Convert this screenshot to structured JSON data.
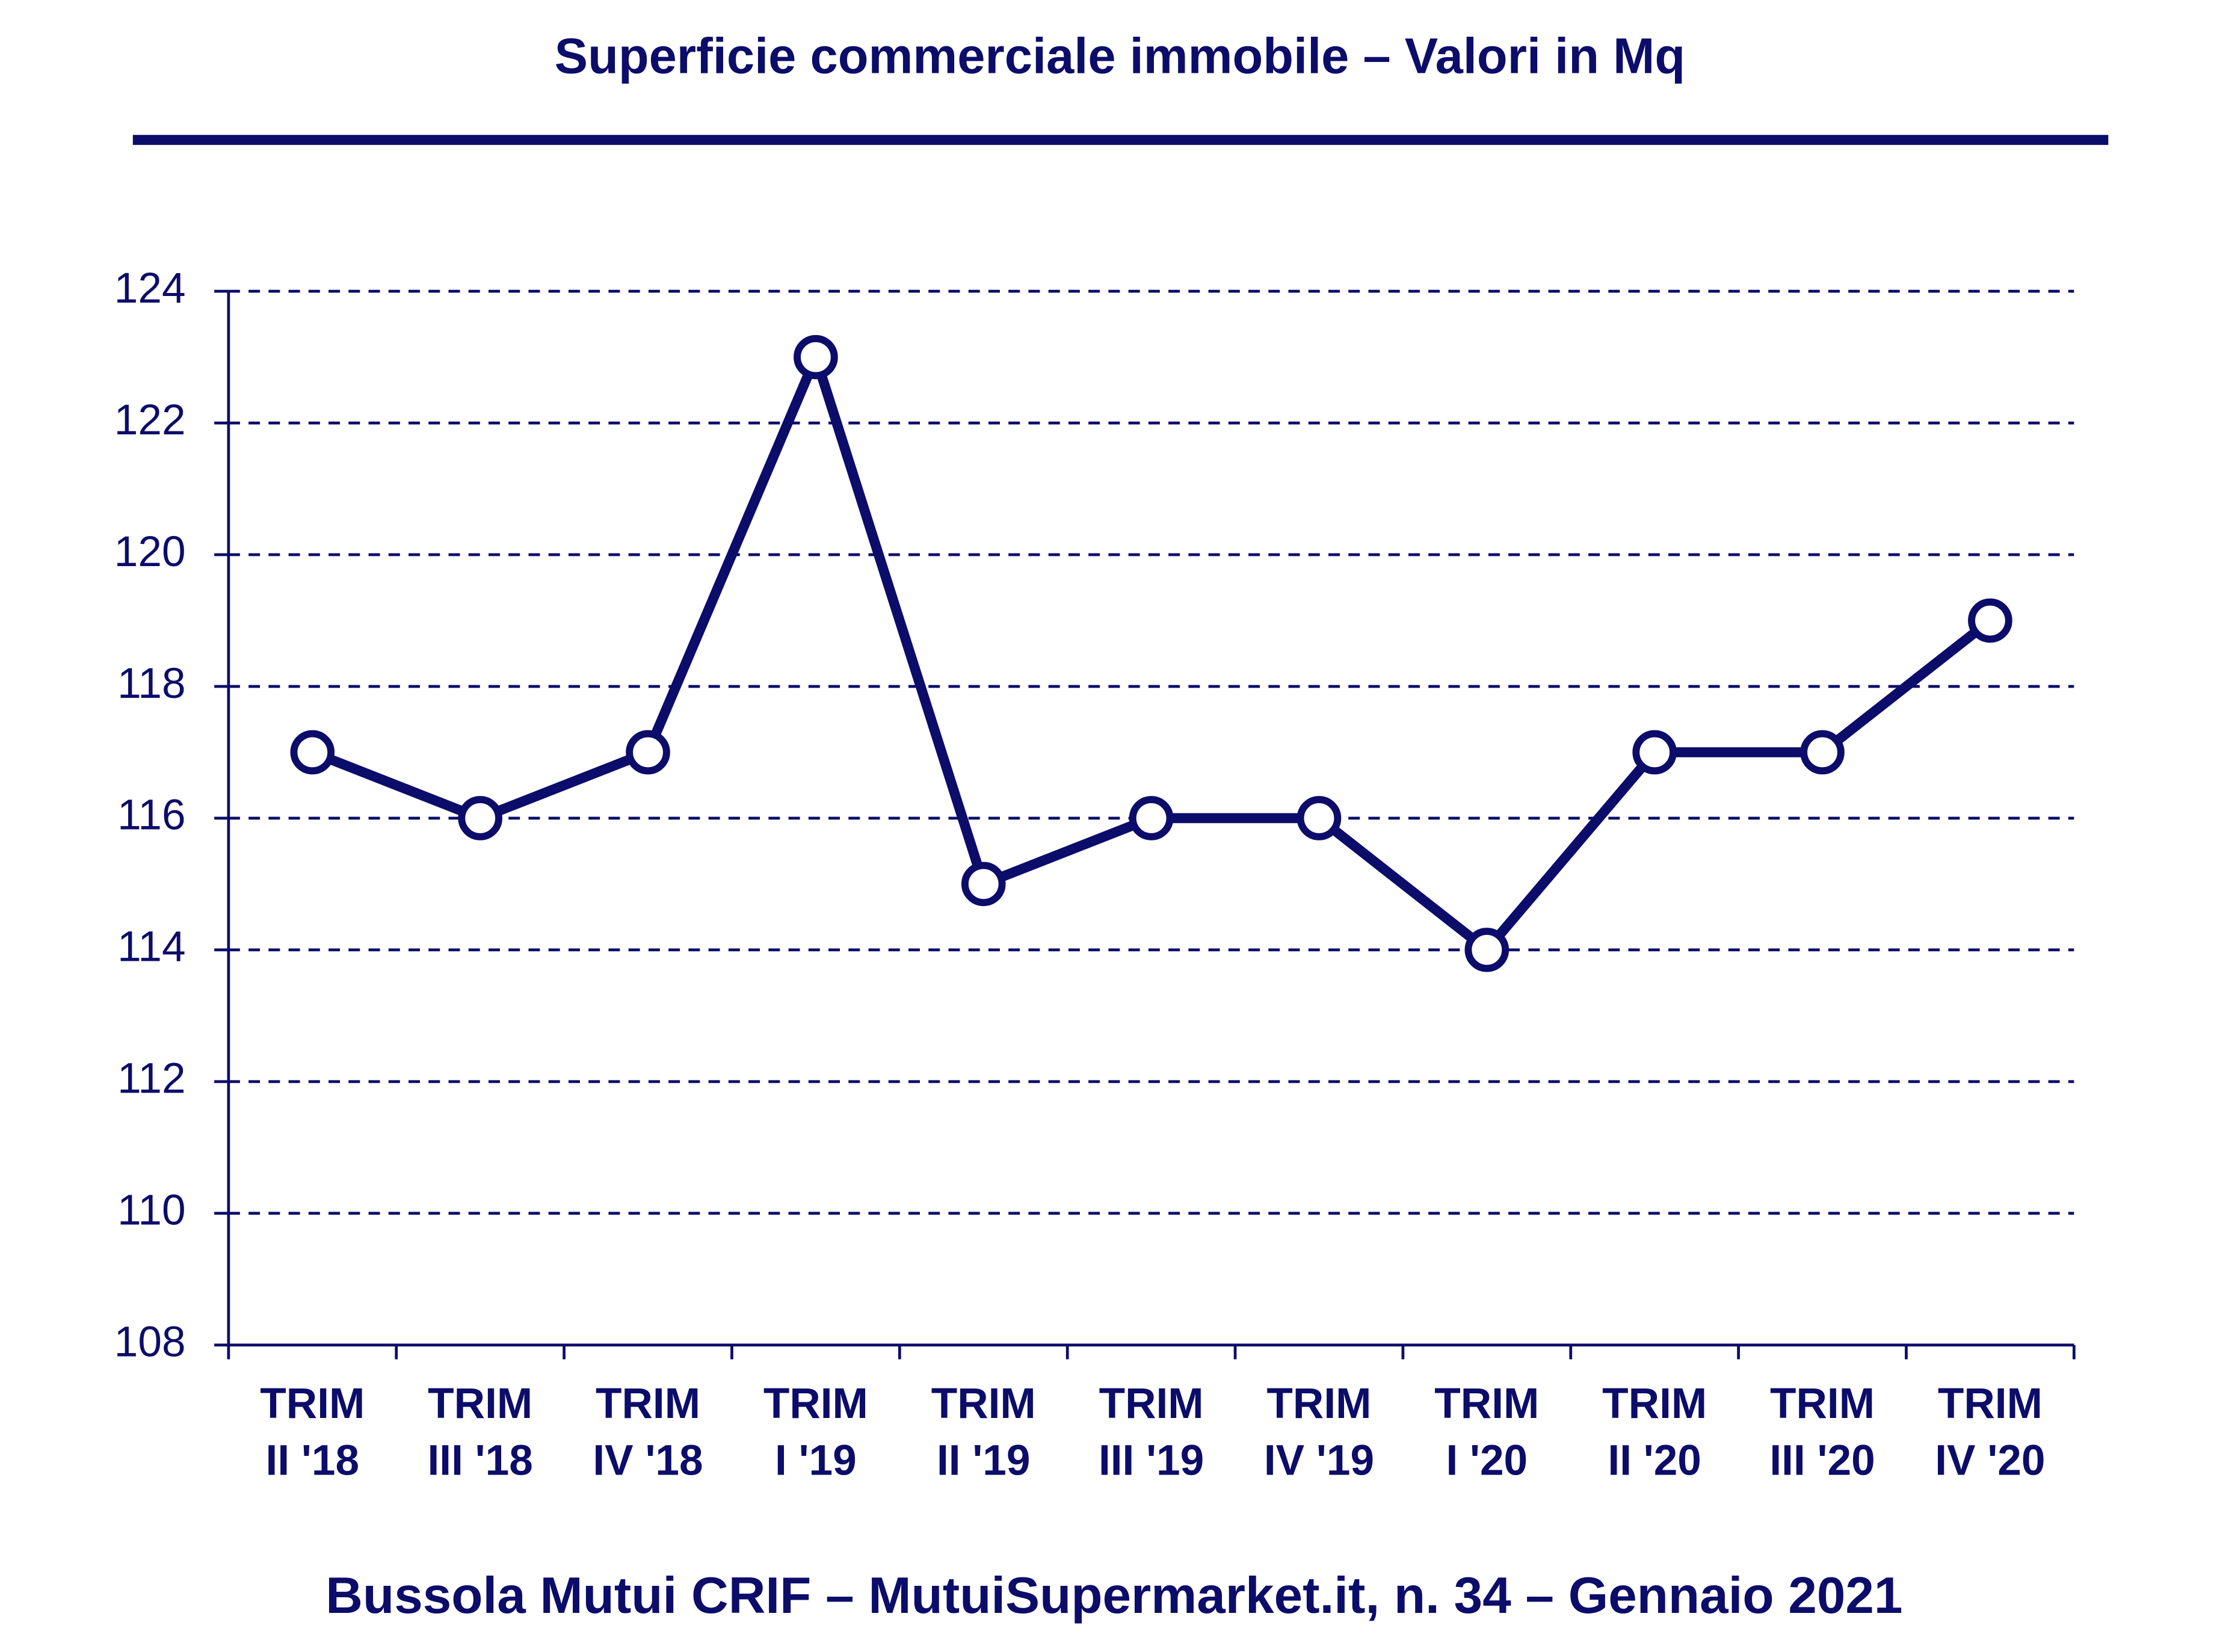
{
  "chart_data": {
    "type": "line",
    "title": "Superficie commerciale immobile – Valori in Mq",
    "source": "Bussola Mutui CRIF – MutuiSupermarket.it, n. 34 – Gennaio 2021",
    "categories": [
      "TRIM II '18",
      "TRIM III '18",
      "TRIM IV '18",
      "TRIM I '19",
      "TRIM II '19",
      "TRIM III '19",
      "TRIM IV '19",
      "TRIM I '20",
      "TRIM II '20",
      "TRIM III '20",
      "TRIM IV '20"
    ],
    "series": [
      {
        "name": "Superficie commerciale",
        "color": "#0c0c6a",
        "values": [
          117,
          116,
          117,
          123,
          115,
          116,
          116,
          114,
          117,
          117,
          119
        ]
      }
    ],
    "ylim": [
      108,
      124
    ],
    "yticks": [
      108,
      110,
      112,
      114,
      116,
      118,
      120,
      122,
      124
    ],
    "grid": true
  }
}
